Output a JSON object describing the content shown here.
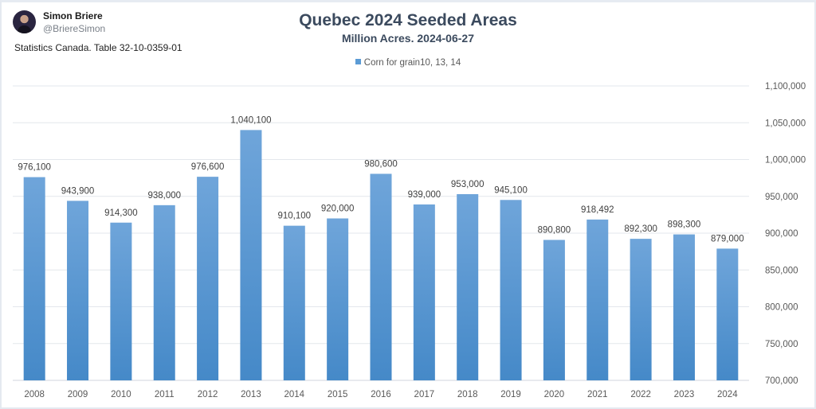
{
  "author": {
    "name": "Simon Briere",
    "handle": "@BriereSimon",
    "source": "Statistics Canada. Table 32-10-0359-01"
  },
  "chart_data": {
    "type": "bar",
    "title": "Quebec 2024 Seeded Areas",
    "subtitle": "Million Acres. 2024-06-27",
    "legend": [
      "Corn for grain10, 13, 14"
    ],
    "legend_position": "top",
    "categories": [
      "2008",
      "2009",
      "2010",
      "2011",
      "2012",
      "2013",
      "2014",
      "2015",
      "2016",
      "2017",
      "2018",
      "2019",
      "2020",
      "2021",
      "2022",
      "2023",
      "2024"
    ],
    "series": [
      {
        "name": "Corn for grain10, 13, 14",
        "values": [
          976100,
          943900,
          914300,
          938000,
          976600,
          1040100,
          910100,
          920000,
          980600,
          939000,
          953000,
          945100,
          890800,
          918492,
          892300,
          898300,
          879000
        ],
        "labels": [
          "976,100",
          "943,900",
          "914,300",
          "938,000",
          "976,600",
          "1,040,100",
          "910,100",
          "920,000",
          "980,600",
          "939,000",
          "953,000",
          "945,100",
          "890,800",
          "918,492",
          "892,300",
          "898,300",
          "879,000"
        ],
        "color": "#5b9bd5"
      }
    ],
    "xlabel": "",
    "ylabel": "",
    "ylim": [
      700000,
      1100000
    ],
    "yticks": [
      700000,
      750000,
      800000,
      850000,
      900000,
      950000,
      1000000,
      1050000,
      1100000
    ],
    "ytick_labels": [
      "700,000",
      "750,000",
      "800,000",
      "850,000",
      "900,000",
      "950,000",
      "1,000,000",
      "1,050,000",
      "1,100,000"
    ],
    "y_axis_side": "right",
    "grid": true
  }
}
